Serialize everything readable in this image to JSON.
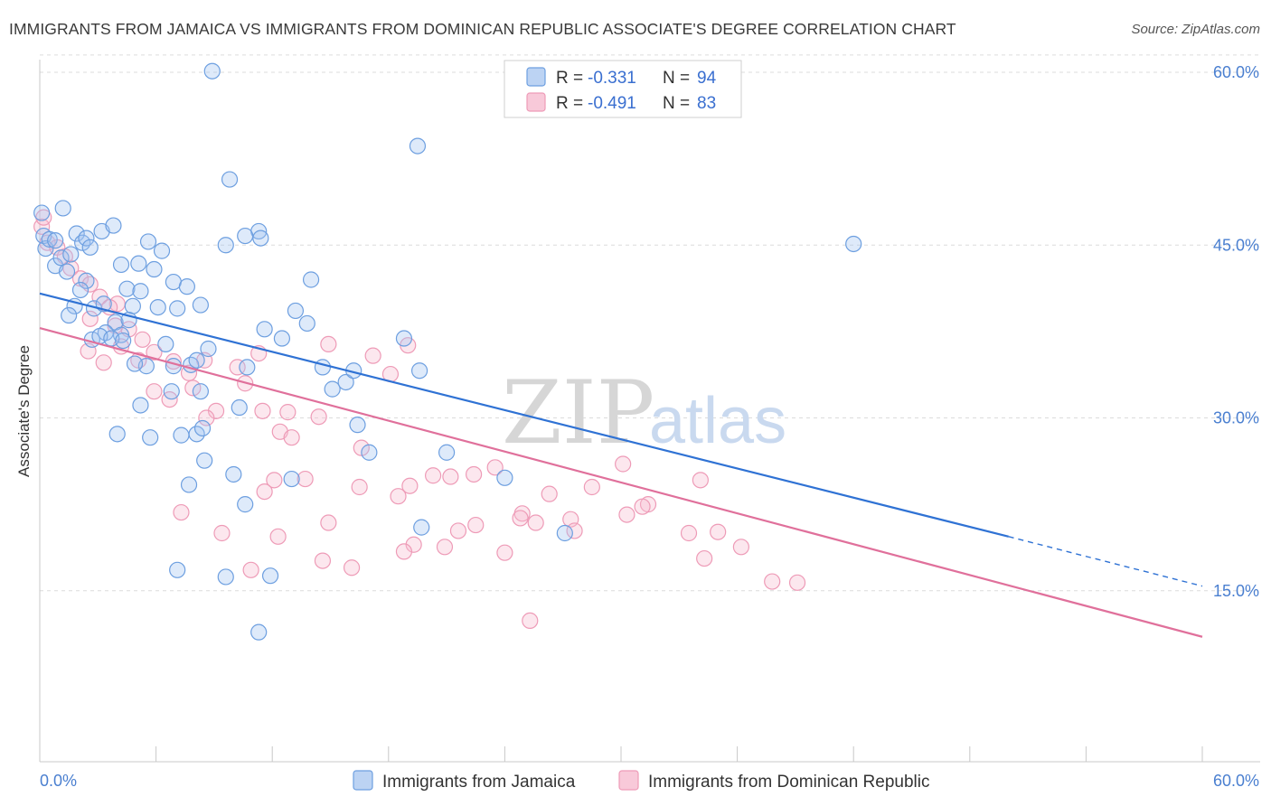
{
  "header": {
    "title": "IMMIGRANTS FROM JAMAICA VS IMMIGRANTS FROM DOMINICAN REPUBLIC ASSOCIATE'S DEGREE CORRELATION CHART",
    "source": "Source: ZipAtlas.com"
  },
  "legend": {
    "jamaica": {
      "r_label": "R = ",
      "r_value": "-0.331",
      "n_label": "N = ",
      "n_value": "94"
    },
    "dominican": {
      "r_label": "R = ",
      "r_value": "-0.491",
      "n_label": "N = ",
      "n_value": "83"
    }
  },
  "watermark": {
    "zip": "ZIP",
    "atlas": "atlas"
  },
  "chart_data": {
    "type": "scatter",
    "ylabel": "Associate's Degree",
    "xlim": [
      0,
      60
    ],
    "ylim": [
      0,
      66
    ],
    "x_ticks": [
      "0.0%",
      "60.0%"
    ],
    "y_ticks": [
      {
        "value": 15,
        "label": "15.0%"
      },
      {
        "value": 30,
        "label": "30.0%"
      },
      {
        "value": 45,
        "label": "45.0%"
      },
      {
        "value": 60,
        "label": "60.0%"
      }
    ],
    "grid": true,
    "legend_position": "top-center",
    "colors": {
      "jamaica": "#6d9fe0",
      "dominican": "#ee9bb7",
      "jamaica_line": "#2f72d4",
      "dominican_line": "#e0709b"
    },
    "series": [
      {
        "name": "Immigrants from Jamaica",
        "key": "jamaica",
        "trend": {
          "x0": 0,
          "y0": 40.8,
          "x1": 50,
          "y1": 19.7,
          "dash_to_x": 60,
          "dash_to_y": 15.4
        },
        "points": [
          [
            0.1,
            47.8
          ],
          [
            0.2,
            45.8
          ],
          [
            0.3,
            44.7
          ],
          [
            0.5,
            45.5
          ],
          [
            0.8,
            45.4
          ],
          [
            1.2,
            48.2
          ],
          [
            0.8,
            43.2
          ],
          [
            1.1,
            43.9
          ],
          [
            1.4,
            42.7
          ],
          [
            1.6,
            44.2
          ],
          [
            1.9,
            46.0
          ],
          [
            2.2,
            45.2
          ],
          [
            2.4,
            45.6
          ],
          [
            2.6,
            44.8
          ],
          [
            2.4,
            41.9
          ],
          [
            2.1,
            41.1
          ],
          [
            3.2,
            46.2
          ],
          [
            3.8,
            46.7
          ],
          [
            2.8,
            39.5
          ],
          [
            3.3,
            39.9
          ],
          [
            1.8,
            39.7
          ],
          [
            1.5,
            38.9
          ],
          [
            4.2,
            43.3
          ],
          [
            5.1,
            43.4
          ],
          [
            5.6,
            45.3
          ],
          [
            6.3,
            44.5
          ],
          [
            5.9,
            42.9
          ],
          [
            4.5,
            41.2
          ],
          [
            6.9,
            41.8
          ],
          [
            5.2,
            41.0
          ],
          [
            4.8,
            39.7
          ],
          [
            6.1,
            39.6
          ],
          [
            3.9,
            38.3
          ],
          [
            4.6,
            38.5
          ],
          [
            3.4,
            37.4
          ],
          [
            4.2,
            37.2
          ],
          [
            7.1,
            39.5
          ],
          [
            8.3,
            39.8
          ],
          [
            7.6,
            41.4
          ],
          [
            2.7,
            36.8
          ],
          [
            3.1,
            37.1
          ],
          [
            3.7,
            36.9
          ],
          [
            4.3,
            36.7
          ],
          [
            6.5,
            36.4
          ],
          [
            7.8,
            34.6
          ],
          [
            8.1,
            35.0
          ],
          [
            5.5,
            34.5
          ],
          [
            4.9,
            34.7
          ],
          [
            6.9,
            34.5
          ],
          [
            8.7,
            36.0
          ],
          [
            10.7,
            34.4
          ],
          [
            11.6,
            37.7
          ],
          [
            12.5,
            36.9
          ],
          [
            13.2,
            39.3
          ],
          [
            13.8,
            38.2
          ],
          [
            14.0,
            42.0
          ],
          [
            14.6,
            34.4
          ],
          [
            15.1,
            32.5
          ],
          [
            15.8,
            33.1
          ],
          [
            16.2,
            34.1
          ],
          [
            16.4,
            29.4
          ],
          [
            18.8,
            36.9
          ],
          [
            19.6,
            34.1
          ],
          [
            8.3,
            32.3
          ],
          [
            6.8,
            32.3
          ],
          [
            5.2,
            31.1
          ],
          [
            4.0,
            28.6
          ],
          [
            5.7,
            28.3
          ],
          [
            7.3,
            28.5
          ],
          [
            8.1,
            28.6
          ],
          [
            8.4,
            29.1
          ],
          [
            10.3,
            30.9
          ],
          [
            8.5,
            26.3
          ],
          [
            10.0,
            25.1
          ],
          [
            7.7,
            24.2
          ],
          [
            10.6,
            22.5
          ],
          [
            13.0,
            24.7
          ],
          [
            17.0,
            27.0
          ],
          [
            9.6,
            16.2
          ],
          [
            7.1,
            16.8
          ],
          [
            11.9,
            16.3
          ],
          [
            11.3,
            11.4
          ],
          [
            8.9,
            60.1
          ],
          [
            9.8,
            50.7
          ],
          [
            19.5,
            53.6
          ],
          [
            11.3,
            46.2
          ],
          [
            10.6,
            45.8
          ],
          [
            11.4,
            45.6
          ],
          [
            9.6,
            45.0
          ],
          [
            19.7,
            20.5
          ],
          [
            24.0,
            24.8
          ],
          [
            27.1,
            20.0
          ],
          [
            42.0,
            45.1
          ],
          [
            21.0,
            27.0
          ]
        ]
      },
      {
        "name": "Immigrants from Dominican Republic",
        "key": "dominican",
        "trend": {
          "x0": 0,
          "y0": 37.8,
          "x1": 60,
          "y1": 11.0
        },
        "points": [
          [
            0.1,
            46.6
          ],
          [
            0.2,
            47.4
          ],
          [
            0.4,
            45.2
          ],
          [
            0.9,
            44.8
          ],
          [
            1.3,
            44.0
          ],
          [
            1.6,
            43.0
          ],
          [
            2.1,
            42.1
          ],
          [
            2.6,
            41.6
          ],
          [
            3.1,
            40.5
          ],
          [
            4.0,
            39.9
          ],
          [
            3.6,
            39.6
          ],
          [
            2.6,
            38.6
          ],
          [
            3.9,
            38.0
          ],
          [
            4.6,
            37.7
          ],
          [
            5.3,
            36.8
          ],
          [
            2.5,
            35.8
          ],
          [
            3.3,
            34.8
          ],
          [
            4.2,
            36.2
          ],
          [
            5.1,
            35.0
          ],
          [
            5.9,
            35.7
          ],
          [
            6.9,
            34.9
          ],
          [
            7.7,
            33.9
          ],
          [
            8.5,
            35.0
          ],
          [
            5.9,
            32.3
          ],
          [
            6.7,
            31.6
          ],
          [
            7.9,
            32.6
          ],
          [
            9.1,
            30.6
          ],
          [
            8.6,
            30.0
          ],
          [
            10.2,
            34.4
          ],
          [
            10.6,
            33.0
          ],
          [
            11.3,
            35.6
          ],
          [
            11.5,
            30.6
          ],
          [
            12.8,
            30.5
          ],
          [
            12.4,
            28.8
          ],
          [
            13.0,
            28.3
          ],
          [
            14.4,
            30.1
          ],
          [
            14.9,
            36.4
          ],
          [
            17.2,
            35.4
          ],
          [
            19.0,
            36.3
          ],
          [
            18.1,
            33.8
          ],
          [
            12.1,
            24.6
          ],
          [
            13.7,
            24.7
          ],
          [
            16.5,
            24.0
          ],
          [
            16.6,
            27.4
          ],
          [
            18.5,
            23.2
          ],
          [
            19.1,
            24.1
          ],
          [
            20.3,
            25.0
          ],
          [
            21.6,
            20.2
          ],
          [
            21.2,
            24.9
          ],
          [
            22.4,
            25.1
          ],
          [
            23.5,
            25.7
          ],
          [
            24.9,
            21.7
          ],
          [
            25.6,
            20.9
          ],
          [
            27.4,
            21.2
          ],
          [
            27.6,
            20.2
          ],
          [
            26.3,
            23.4
          ],
          [
            28.5,
            24.0
          ],
          [
            30.3,
            21.6
          ],
          [
            31.4,
            22.5
          ],
          [
            34.1,
            24.6
          ],
          [
            30.1,
            26.0
          ],
          [
            31.1,
            22.3
          ],
          [
            24.8,
            21.3
          ],
          [
            33.5,
            20.0
          ],
          [
            34.3,
            17.8
          ],
          [
            35.0,
            20.1
          ],
          [
            36.2,
            18.8
          ],
          [
            37.8,
            15.8
          ],
          [
            39.1,
            15.7
          ],
          [
            25.3,
            12.4
          ],
          [
            24.0,
            18.3
          ],
          [
            22.5,
            20.7
          ],
          [
            20.9,
            18.8
          ],
          [
            19.3,
            19.0
          ],
          [
            18.8,
            18.4
          ],
          [
            16.1,
            17.0
          ],
          [
            14.6,
            17.6
          ],
          [
            14.9,
            20.9
          ],
          [
            12.3,
            19.7
          ],
          [
            10.9,
            16.8
          ],
          [
            9.4,
            20.0
          ],
          [
            11.6,
            23.6
          ],
          [
            7.3,
            21.8
          ]
        ]
      }
    ]
  },
  "bottom_legend": {
    "jamaica_label": "Immigrants from Jamaica",
    "dominican_label": "Immigrants from Dominican Republic"
  }
}
